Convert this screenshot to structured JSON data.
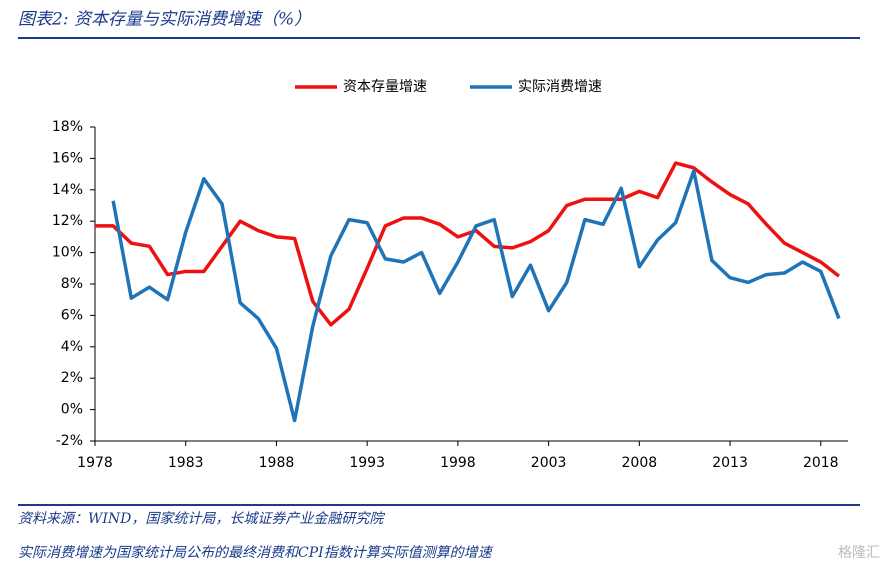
{
  "header": {
    "title": "图表2: 资本存量与实际消费增速（%）"
  },
  "chart_data": {
    "type": "line",
    "x": [
      1978,
      1979,
      1980,
      1981,
      1982,
      1983,
      1984,
      1985,
      1986,
      1987,
      1988,
      1989,
      1990,
      1991,
      1992,
      1993,
      1994,
      1995,
      1996,
      1997,
      1998,
      1999,
      2000,
      2001,
      2002,
      2003,
      2004,
      2005,
      2006,
      2007,
      2008,
      2009,
      2010,
      2011,
      2012,
      2013,
      2014,
      2015,
      2016,
      2017,
      2018,
      2019
    ],
    "series": [
      {
        "name": "资本存量增速",
        "color": "#ee1111",
        "values": [
          11.7,
          11.7,
          10.6,
          10.4,
          8.6,
          8.8,
          8.8,
          10.4,
          12.0,
          11.4,
          11.0,
          10.9,
          6.9,
          5.4,
          6.4,
          9.0,
          11.7,
          12.2,
          12.2,
          11.8,
          11.0,
          11.4,
          10.4,
          10.3,
          10.7,
          11.4,
          13.0,
          13.4,
          13.4,
          13.4,
          13.9,
          13.5,
          15.7,
          15.4,
          14.5,
          13.7,
          13.1,
          11.8,
          10.6,
          10.0,
          9.4,
          8.5
        ]
      },
      {
        "name": "实际消费增速",
        "color": "#1f74b8",
        "values": [
          null,
          13.3,
          7.1,
          7.8,
          7.0,
          11.3,
          14.7,
          13.1,
          6.8,
          5.8,
          3.9,
          -0.7,
          5.3,
          9.8,
          12.1,
          11.9,
          9.6,
          9.4,
          10.0,
          7.4,
          9.4,
          11.7,
          12.1,
          7.2,
          9.2,
          6.3,
          8.1,
          12.1,
          11.8,
          14.1,
          9.1,
          10.8,
          11.9,
          15.2,
          9.5,
          8.4,
          8.1,
          8.6,
          8.7,
          9.4,
          8.8,
          5.8
        ]
      }
    ],
    "xlim": [
      1978,
      2019.5
    ],
    "xticks": [
      1978,
      1983,
      1988,
      1993,
      1998,
      2003,
      2008,
      2013,
      2018
    ],
    "ylim": [
      -2,
      18
    ],
    "yticks": [
      {
        "value": -2,
        "label": "-2%"
      },
      {
        "value": 0,
        "label": "0%"
      },
      {
        "value": 2,
        "label": "2%"
      },
      {
        "value": 4,
        "label": "4%"
      },
      {
        "value": 6,
        "label": "6%"
      },
      {
        "value": 8,
        "label": "8%"
      },
      {
        "value": 10,
        "label": "10%"
      },
      {
        "value": 12,
        "label": "12%"
      },
      {
        "value": 14,
        "label": "14%"
      },
      {
        "value": 16,
        "label": "16%"
      },
      {
        "value": 18,
        "label": "18%"
      }
    ],
    "legend": "top"
  },
  "footer": {
    "source": "资料来源：WIND，国家统计局，长城证券产业金融研究院",
    "note": "实际消费增速为国家统计局公布的最终消费和CPI指数计算实际值测算的增速",
    "watermark": "格隆汇"
  }
}
